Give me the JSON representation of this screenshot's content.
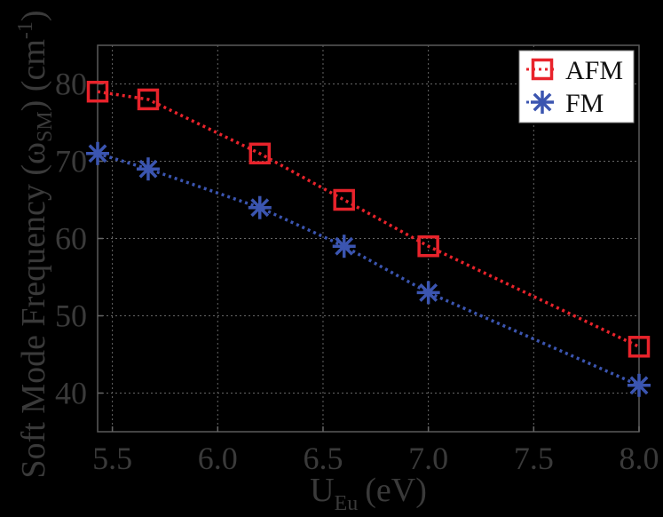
{
  "chart_data": {
    "type": "line",
    "title": "",
    "xlabel": "U_Eu (eV)",
    "xlabel_main": "U",
    "xlabel_sub": "Eu",
    "xlabel_unit": "(eV)",
    "ylabel": "Soft Mode Frequency (ω_SM) (cm^-1)",
    "ylabel_pre": "Soft Mode Frequency (ω",
    "ylabel_sub": "SM",
    "ylabel_mid": ") (cm",
    "ylabel_sup": "-1",
    "ylabel_post": ")",
    "xlim": [
      5.43,
      8.0
    ],
    "ylim": [
      35,
      85
    ],
    "xticks": [
      "5.5",
      "6.0",
      "6.5",
      "7.0",
      "7.5",
      "8.0"
    ],
    "yticks": [
      "40",
      "50",
      "60",
      "70",
      "80"
    ],
    "grid": true,
    "legend_position": "upper right",
    "x": [
      5.43,
      5.67,
      6.2,
      6.6,
      7.0,
      8.0
    ],
    "series": [
      {
        "name": "AFM",
        "color": "#e8232b",
        "marker": "square",
        "linestyle": "dotted",
        "values": [
          79,
          78,
          71,
          65,
          59,
          46
        ]
      },
      {
        "name": "FM",
        "color": "#3b55b0",
        "marker": "asterisk",
        "linestyle": "dotted",
        "values": [
          71,
          69,
          64,
          59,
          53,
          41
        ]
      }
    ]
  }
}
